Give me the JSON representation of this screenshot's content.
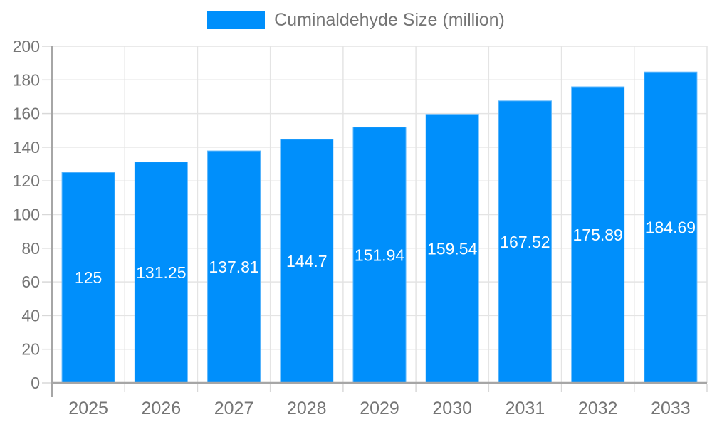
{
  "chart_data": {
    "type": "bar",
    "title": "Cuminaldehyde Size (million)",
    "series_name": "Cuminaldehyde Size (million)",
    "categories": [
      "2025",
      "2026",
      "2027",
      "2028",
      "2029",
      "2030",
      "2031",
      "2032",
      "2033"
    ],
    "values": [
      125,
      131.25,
      137.81,
      144.7,
      151.94,
      159.54,
      167.52,
      175.89,
      184.69
    ],
    "value_labels": [
      "125",
      "131.25",
      "137.81",
      "144.7",
      "151.94",
      "159.54",
      "167.52",
      "175.89",
      "184.69"
    ],
    "xlabel": "",
    "ylabel": "",
    "ylim": [
      0,
      200
    ],
    "ytick_step": 20,
    "yticks": [
      0,
      20,
      40,
      60,
      80,
      100,
      120,
      140,
      160,
      180,
      200
    ],
    "grid": true,
    "legend_position": "top-center",
    "colors": {
      "bar": "#008FFB",
      "bar_edge": "#5ab5fb",
      "bar_label": "#ffffff",
      "axis_line": "#a6a6a6",
      "grid_line": "#e4e4e4",
      "tick_mark": "#d8d8d8",
      "tick_text": "#757575"
    }
  }
}
